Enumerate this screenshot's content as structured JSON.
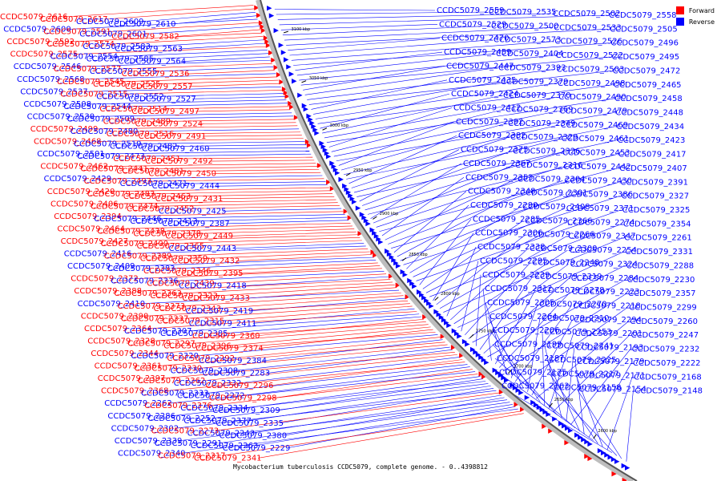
{
  "legend": {
    "forward_label": "Forward",
    "reverse_label": "Reverse",
    "forward_color": "#ff0000",
    "reverse_color": "#0000ff"
  },
  "caption": "Mycobacterium tuberculosis CCDC5079, complete genome. - 0..4398812",
  "ticks": [
    "3100 kbp",
    "3050 kbp",
    "3000 kbp",
    "2950 kbp",
    "2900 kbp",
    "2850 kbp",
    "2800 kbp",
    "2750 kbp",
    "2700 kbp",
    "2650 kbp",
    "2600 kbp"
  ],
  "left_labels": [
    {
      "text": "CCDC5079_2616",
      "strand": "forward"
    },
    {
      "text": "CCDC5079_2617",
      "strand": "forward"
    },
    {
      "text": "CCDC5079_2609",
      "strand": "reverse"
    },
    {
      "text": "CCDC5079_2610",
      "strand": "reverse"
    },
    {
      "text": "CCDC5079_2600",
      "strand": "reverse"
    },
    {
      "text": "CCDC5079_2591",
      "strand": "forward"
    },
    {
      "text": "CCDC5079_2601",
      "strand": "reverse"
    },
    {
      "text": "CCDC5079_2582",
      "strand": "forward"
    },
    {
      "text": "CCDC5079_2592",
      "strand": "forward"
    },
    {
      "text": "CCDC5079_2574",
      "strand": "forward"
    },
    {
      "text": "CCDC5079_2583",
      "strand": "reverse"
    },
    {
      "text": "CCDC5079_2563",
      "strand": "reverse"
    },
    {
      "text": "CCDC5079_2575",
      "strand": "forward"
    },
    {
      "text": "CCDC5079_2554",
      "strand": "reverse"
    },
    {
      "text": "CCDC5079_2585",
      "strand": "reverse"
    },
    {
      "text": "CCDC5079_2564",
      "strand": "reverse"
    },
    {
      "text": "CCDC5079_2546",
      "strand": "reverse"
    },
    {
      "text": "CCDC5079_2577",
      "strand": "forward"
    },
    {
      "text": "CCDC5079_2555",
      "strand": "reverse"
    },
    {
      "text": "CCDC5079_2536",
      "strand": "forward"
    },
    {
      "text": "CCDC5079_2568",
      "strand": "reverse"
    },
    {
      "text": "CCDC5079_2545",
      "strand": "forward"
    },
    {
      "text": "CCDC5079_2525",
      "strand": "forward"
    },
    {
      "text": "CCDC5079_2557",
      "strand": "forward"
    },
    {
      "text": "CCDC5079_2537",
      "strand": "reverse"
    },
    {
      "text": "CCDC5079_2515",
      "strand": "forward"
    },
    {
      "text": "CCDC5079_2552",
      "strand": "reverse"
    },
    {
      "text": "CCDC5079_2527",
      "strand": "reverse"
    },
    {
      "text": "CCDC5079_2508",
      "strand": "reverse"
    },
    {
      "text": "CCDC5079_2544",
      "strand": "reverse"
    },
    {
      "text": "CCDC5079_2514",
      "strand": "forward"
    },
    {
      "text": "CCDC5079_2497",
      "strand": "forward"
    },
    {
      "text": "CCDC5079_2530",
      "strand": "reverse"
    },
    {
      "text": "CCDC5079_2509",
      "strand": "reverse"
    },
    {
      "text": "CCDC5079_2489",
      "strand": "forward"
    },
    {
      "text": "CCDC5079_2524",
      "strand": "forward"
    },
    {
      "text": "CCDC5079_2499",
      "strand": "forward"
    },
    {
      "text": "CCDC5079_2480",
      "strand": "reverse"
    },
    {
      "text": "CCDC5079_2516",
      "strand": "forward"
    },
    {
      "text": "CCDC5079_2491",
      "strand": "forward"
    },
    {
      "text": "CCDC5079_2468",
      "strand": "forward"
    },
    {
      "text": "CCDC5079_2510",
      "strand": "reverse"
    },
    {
      "text": "CCDC5079_2482",
      "strand": "reverse"
    },
    {
      "text": "CCDC5079_2460",
      "strand": "reverse"
    },
    {
      "text": "CCDC5079_2501",
      "strand": "reverse"
    },
    {
      "text": "CCDC5079_2473",
      "strand": "reverse"
    },
    {
      "text": "CCDC5079_2451",
      "strand": "forward"
    },
    {
      "text": "CCDC5079_2492",
      "strand": "forward"
    },
    {
      "text": "CCDC5079_2462",
      "strand": "forward"
    },
    {
      "text": "CCDC5079_2441",
      "strand": "forward"
    },
    {
      "text": "CCDC5079_2481",
      "strand": "forward"
    },
    {
      "text": "CCDC5079_2450",
      "strand": "forward"
    },
    {
      "text": "CCDC5079_2429",
      "strand": "reverse"
    },
    {
      "text": "CCDC5079_2493",
      "strand": "forward"
    },
    {
      "text": "CCDC5079_2471",
      "strand": "reverse"
    },
    {
      "text": "CCDC5079_2444",
      "strand": "reverse"
    },
    {
      "text": "CCDC5079_2420",
      "strand": "forward"
    },
    {
      "text": "CCDC5079_2483",
      "strand": "forward"
    },
    {
      "text": "CCDC5079_2463",
      "strand": "forward"
    },
    {
      "text": "CCDC5079_2431",
      "strand": "forward"
    },
    {
      "text": "CCDC5079_2406",
      "strand": "forward"
    },
    {
      "text": "CCDC5079_2474",
      "strand": "forward"
    },
    {
      "text": "CCDC5079_2452",
      "strand": "forward"
    },
    {
      "text": "CCDC5079_2425",
      "strand": "reverse"
    },
    {
      "text": "CCDC5079_2394",
      "strand": "forward"
    },
    {
      "text": "CCDC5079_2446",
      "strand": "reverse"
    },
    {
      "text": "CCDC5079_2413",
      "strand": "reverse"
    },
    {
      "text": "CCDC5079_2387",
      "strand": "reverse"
    },
    {
      "text": "CCDC5079_2464",
      "strand": "forward"
    },
    {
      "text": "CCDC5079_2438",
      "strand": "forward"
    },
    {
      "text": "CCDC5079_2378",
      "strand": "forward"
    },
    {
      "text": "CCDC5079_2449",
      "strand": "forward"
    },
    {
      "text": "CCDC5079_2427",
      "strand": "forward"
    },
    {
      "text": "CCDC5079_2400",
      "strand": "forward"
    },
    {
      "text": "CCDC5079_2365",
      "strand": "forward"
    },
    {
      "text": "CCDC5079_2443",
      "strand": "reverse"
    },
    {
      "text": "CCDC5079_2416",
      "strand": "reverse"
    },
    {
      "text": "CCDC5079_2389",
      "strand": "forward"
    },
    {
      "text": "CCDC5079_2359",
      "strand": "forward"
    },
    {
      "text": "CCDC5079_2432",
      "strand": "forward"
    },
    {
      "text": "CCDC5079_2409",
      "strand": "reverse"
    },
    {
      "text": "CCDC5079_2383",
      "strand": "reverse"
    },
    {
      "text": "CCDC5079_2346",
      "strand": "forward"
    },
    {
      "text": "CCDC5079_2395",
      "strand": "forward"
    },
    {
      "text": "CCDC5079_2372",
      "strand": "forward"
    },
    {
      "text": "CCDC5079_2336",
      "strand": "reverse"
    },
    {
      "text": "CCDC5079_2439",
      "strand": "forward"
    },
    {
      "text": "CCDC5079_2418",
      "strand": "reverse"
    },
    {
      "text": "CCDC5079_2388",
      "strand": "forward"
    },
    {
      "text": "CCDC5079_2363",
      "strand": "forward"
    },
    {
      "text": "CCDC5079_2323",
      "strand": "forward"
    },
    {
      "text": "CCDC5079_2433",
      "strand": "forward"
    },
    {
      "text": "CCDC5079_2410",
      "strand": "reverse"
    },
    {
      "text": "CCDC5079_2373",
      "strand": "forward"
    },
    {
      "text": "CCDC5079_2343",
      "strand": "forward"
    },
    {
      "text": "CCDC5079_2419",
      "strand": "reverse"
    },
    {
      "text": "CCDC5079_2390",
      "strand": "forward"
    },
    {
      "text": "CCDC5079_2337",
      "strand": "forward"
    },
    {
      "text": "CCDC5079_2315",
      "strand": "forward"
    },
    {
      "text": "CCDC5079_2411",
      "strand": "reverse"
    },
    {
      "text": "CCDC5079_2364",
      "strand": "forward"
    },
    {
      "text": "CCDC5079_2307",
      "strand": "reverse"
    },
    {
      "text": "CCDC5079_2385",
      "strand": "reverse"
    },
    {
      "text": "CCDC5079_2360",
      "strand": "forward"
    },
    {
      "text": "CCDC5079_2328",
      "strand": "forward"
    },
    {
      "text": "CCDC5079_2297",
      "strand": "forward"
    },
    {
      "text": "CCDC5079_2396",
      "strand": "forward"
    },
    {
      "text": "CCDC5079_2374",
      "strand": "forward"
    },
    {
      "text": "CCDC5079_2344",
      "strand": "forward"
    },
    {
      "text": "CCDC5079_2320",
      "strand": "reverse"
    },
    {
      "text": "CCDC5079_2292",
      "strand": "forward"
    },
    {
      "text": "CCDC5079_2384",
      "strand": "reverse"
    },
    {
      "text": "CCDC5079_2361",
      "strand": "forward"
    },
    {
      "text": "CCDC5079_2330",
      "strand": "forward"
    },
    {
      "text": "CCDC5079_2308",
      "strand": "reverse"
    },
    {
      "text": "CCDC5079_2283",
      "strand": "reverse"
    },
    {
      "text": "CCDC5079_2397",
      "strand": "forward"
    },
    {
      "text": "CCDC5079_2362",
      "strand": "forward"
    },
    {
      "text": "CCDC5079_2332",
      "strand": "reverse"
    },
    {
      "text": "CCDC5079_2296",
      "strand": "forward"
    },
    {
      "text": "CCDC5079_2368",
      "strand": "forward"
    },
    {
      "text": "CCDC5079_2333",
      "strand": "reverse"
    },
    {
      "text": "CCDC5079_2272",
      "strand": "reverse"
    },
    {
      "text": "CCDC5079_2298",
      "strand": "forward"
    },
    {
      "text": "CCDC5079_2262",
      "strand": "reverse"
    },
    {
      "text": "CCDC5079_2376",
      "strand": "forward"
    },
    {
      "text": "CCDC5079_2334",
      "strand": "reverse"
    },
    {
      "text": "CCDC5079_2309",
      "strand": "reverse"
    },
    {
      "text": "CCDC5079_2286",
      "strand": "reverse"
    },
    {
      "text": "CCDC5079_2252",
      "strand": "reverse"
    },
    {
      "text": "CCDC5079_2377",
      "strand": "reverse"
    },
    {
      "text": "CCDC5079_2335",
      "strand": "reverse"
    },
    {
      "text": "CCDC5079_2302",
      "strand": "reverse"
    },
    {
      "text": "CCDC5079_2273",
      "strand": "forward"
    },
    {
      "text": "CCDC5079_2243",
      "strand": "reverse"
    },
    {
      "text": "CCDC5079_2380",
      "strand": "reverse"
    },
    {
      "text": "CCDC5079_2339",
      "strand": "reverse"
    },
    {
      "text": "CCDC5079_2291",
      "strand": "reverse"
    },
    {
      "text": "CCDC5079_2263",
      "strand": "reverse"
    },
    {
      "text": "CCDC5079_2229",
      "strand": "reverse"
    },
    {
      "text": "CCDC5079_2340",
      "strand": "reverse"
    },
    {
      "text": "CCDC5079_2317",
      "strand": "forward"
    },
    {
      "text": "CCDC5079_2341",
      "strand": "forward"
    }
  ],
  "right_labels": [
    {
      "text": "CCDC5079_2559",
      "strand": "reverse"
    },
    {
      "text": "CCDC5079_2535",
      "strand": "reverse"
    },
    {
      "text": "CCDC5079_2502",
      "strand": "reverse"
    },
    {
      "text": "CCDC5079_2558",
      "strand": "reverse"
    },
    {
      "text": "CCDC5079_2529",
      "strand": "reverse"
    },
    {
      "text": "CCDC5079_2500",
      "strand": "reverse"
    },
    {
      "text": "CCDC5079_2533",
      "strand": "reverse"
    },
    {
      "text": "CCDC5079_2505",
      "strand": "reverse"
    },
    {
      "text": "CCDC5079_2470",
      "strand": "reverse"
    },
    {
      "text": "CCDC5079_2573",
      "strand": "reverse"
    },
    {
      "text": "CCDC5079_2526",
      "strand": "reverse"
    },
    {
      "text": "CCDC5079_2496",
      "strand": "reverse"
    },
    {
      "text": "CCDC5079_2459",
      "strand": "reverse"
    },
    {
      "text": "CCDC5079_2404",
      "strand": "reverse"
    },
    {
      "text": "CCDC5079_2522",
      "strand": "reverse"
    },
    {
      "text": "CCDC5079_2495",
      "strand": "reverse"
    },
    {
      "text": "CCDC5079_2447",
      "strand": "reverse"
    },
    {
      "text": "CCDC5079_2393",
      "strand": "reverse"
    },
    {
      "text": "CCDC5079_2503",
      "strand": "reverse"
    },
    {
      "text": "CCDC5079_2472",
      "strand": "reverse"
    },
    {
      "text": "CCDC5079_2435",
      "strand": "reverse"
    },
    {
      "text": "CCDC5079_2379",
      "strand": "reverse"
    },
    {
      "text": "CCDC5079_2498",
      "strand": "reverse"
    },
    {
      "text": "CCDC5079_2465",
      "strand": "reverse"
    },
    {
      "text": "CCDC5079_2424",
      "strand": "reverse"
    },
    {
      "text": "CCDC5079_2370",
      "strand": "reverse"
    },
    {
      "text": "CCDC5079_2490",
      "strand": "reverse"
    },
    {
      "text": "CCDC5079_2458",
      "strand": "reverse"
    },
    {
      "text": "CCDC5079_2412",
      "strand": "reverse"
    },
    {
      "text": "CCDC5079_2369",
      "strand": "reverse"
    },
    {
      "text": "CCDC5079_2479",
      "strand": "reverse"
    },
    {
      "text": "CCDC5079_2448",
      "strand": "reverse"
    },
    {
      "text": "CCDC5079_2392",
      "strand": "reverse"
    },
    {
      "text": "CCDC5079_2349",
      "strand": "reverse"
    },
    {
      "text": "CCDC5079_2469",
      "strand": "reverse"
    },
    {
      "text": "CCDC5079_2434",
      "strand": "reverse"
    },
    {
      "text": "CCDC5079_2382",
      "strand": "reverse"
    },
    {
      "text": "CCDC5079_2329",
      "strand": "reverse"
    },
    {
      "text": "CCDC5079_2461",
      "strand": "reverse"
    },
    {
      "text": "CCDC5079_2423",
      "strand": "reverse"
    },
    {
      "text": "CCDC5079_2375",
      "strand": "reverse"
    },
    {
      "text": "CCDC5079_2326",
      "strand": "reverse"
    },
    {
      "text": "CCDC5079_2453",
      "strand": "reverse"
    },
    {
      "text": "CCDC5079_2417",
      "strand": "reverse"
    },
    {
      "text": "CCDC5079_2367",
      "strand": "reverse"
    },
    {
      "text": "CCDC5079_2316",
      "strand": "reverse"
    },
    {
      "text": "CCDC5079_2442",
      "strand": "reverse"
    },
    {
      "text": "CCDC5079_2407",
      "strand": "reverse"
    },
    {
      "text": "CCDC5079_2353",
      "strand": "reverse"
    },
    {
      "text": "CCDC5079_2304",
      "strand": "reverse"
    },
    {
      "text": "CCDC5079_2430",
      "strand": "reverse"
    },
    {
      "text": "CCDC5079_2391",
      "strand": "reverse"
    },
    {
      "text": "CCDC5079_2348",
      "strand": "reverse"
    },
    {
      "text": "CCDC5079_2301",
      "strand": "reverse"
    },
    {
      "text": "CCDC5079_2386",
      "strand": "reverse"
    },
    {
      "text": "CCDC5079_2327",
      "strand": "reverse"
    },
    {
      "text": "CCDC5079_2290",
      "strand": "reverse"
    },
    {
      "text": "CCDC5079_2408",
      "strand": "reverse"
    },
    {
      "text": "CCDC5079_2371",
      "strand": "reverse"
    },
    {
      "text": "CCDC5079_2325",
      "strand": "reverse"
    },
    {
      "text": "CCDC5079_2285",
      "strand": "reverse"
    },
    {
      "text": "CCDC5079_2366",
      "strand": "reverse"
    },
    {
      "text": "CCDC5079_2274",
      "strand": "reverse"
    },
    {
      "text": "CCDC5079_2354",
      "strand": "reverse"
    },
    {
      "text": "CCDC5079_2306",
      "strand": "reverse"
    },
    {
      "text": "CCDC5079_2266",
      "strand": "reverse"
    },
    {
      "text": "CCDC5079_2347",
      "strand": "reverse"
    },
    {
      "text": "CCDC5079_2261",
      "strand": "reverse"
    },
    {
      "text": "CCDC5079_2338",
      "strand": "reverse"
    },
    {
      "text": "CCDC5079_2300",
      "strand": "reverse"
    },
    {
      "text": "CCDC5079_2254",
      "strand": "reverse"
    },
    {
      "text": "CCDC5079_2331",
      "strand": "reverse"
    },
    {
      "text": "CCDC5079_2295",
      "strand": "reverse"
    },
    {
      "text": "CCDC5079_2248",
      "strand": "reverse"
    },
    {
      "text": "CCDC5079_2324",
      "strand": "reverse"
    },
    {
      "text": "CCDC5079_2288",
      "strand": "reverse"
    },
    {
      "text": "CCDC5079_2239",
      "strand": "reverse"
    },
    {
      "text": "CCDC5079_2319",
      "strand": "reverse"
    },
    {
      "text": "CCDC5079_2284",
      "strand": "reverse"
    },
    {
      "text": "CCDC5079_2230",
      "strand": "reverse"
    },
    {
      "text": "CCDC5079_2312",
      "strand": "reverse"
    },
    {
      "text": "CCDC5079_2278",
      "strand": "reverse"
    },
    {
      "text": "CCDC5079_2223",
      "strand": "reverse"
    },
    {
      "text": "CCDC5079_2357",
      "strand": "reverse"
    },
    {
      "text": "CCDC5079_2305",
      "strand": "reverse"
    },
    {
      "text": "CCDC5079_2270",
      "strand": "reverse"
    },
    {
      "text": "CCDC5079_2218",
      "strand": "reverse"
    },
    {
      "text": "CCDC5079_2299",
      "strand": "reverse"
    },
    {
      "text": "CCDC5079_2264",
      "strand": "reverse"
    },
    {
      "text": "CCDC5079_2210",
      "strand": "reverse"
    },
    {
      "text": "CCDC5079_2294",
      "strand": "reverse"
    },
    {
      "text": "CCDC5079_2260",
      "strand": "reverse"
    },
    {
      "text": "CCDC5079_2206",
      "strand": "reverse"
    },
    {
      "text": "CCDC5079_2253",
      "strand": "reverse"
    },
    {
      "text": "CCDC5079_2201",
      "strand": "reverse"
    },
    {
      "text": "CCDC5079_2247",
      "strand": "reverse"
    },
    {
      "text": "CCDC5079_2199",
      "strand": "reverse"
    },
    {
      "text": "CCDC5079_2241",
      "strand": "reverse"
    },
    {
      "text": "CCDC5079_2193",
      "strand": "reverse"
    },
    {
      "text": "CCDC5079_2232",
      "strand": "reverse"
    },
    {
      "text": "CCDC5079_2187",
      "strand": "reverse"
    },
    {
      "text": "CCDC5079_2225",
      "strand": "reverse"
    },
    {
      "text": "CCDC5079_2179",
      "strand": "reverse"
    },
    {
      "text": "CCDC5079_2222",
      "strand": "reverse"
    },
    {
      "text": "CCDC5079_2175",
      "strand": "reverse"
    },
    {
      "text": "CCDC5079_2217",
      "strand": "reverse"
    },
    {
      "text": "CCDC5079_2171",
      "strand": "reverse"
    },
    {
      "text": "CCDC5079_2168",
      "strand": "reverse"
    },
    {
      "text": "CCDC5079_2163",
      "strand": "reverse"
    },
    {
      "text": "CCDC5079_2158",
      "strand": "reverse"
    },
    {
      "text": "CCDC5079_2154",
      "strand": "reverse"
    },
    {
      "text": "CCDC5079_2148",
      "strand": "reverse"
    }
  ]
}
